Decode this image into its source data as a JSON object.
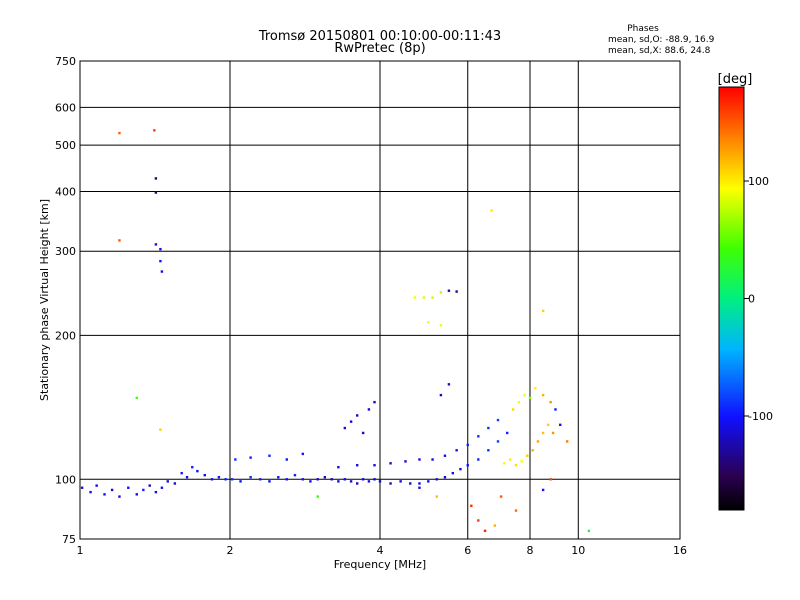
{
  "chart_data": {
    "type": "scatter",
    "title": "Tromsø 20150801 00:10:00-00:11:43",
    "subtitle": "RwPretec (8p)",
    "xlabel": "Frequency [MHz]",
    "ylabel": "Stationary phase Virtual Height [km]",
    "x_scale": "log2",
    "y_scale": "log",
    "xlim": [
      1,
      16
    ],
    "ylim": [
      75,
      750
    ],
    "x_ticks": [
      1,
      2,
      4,
      6,
      8,
      10,
      16
    ],
    "y_ticks": [
      75,
      100,
      200,
      300,
      400,
      500,
      600,
      750
    ],
    "grid": true,
    "stats": {
      "heading": "Phases",
      "line_o": "mean, sd,O: -88.9, 16.9",
      "line_x": "mean, sd,X:  88.6, 24.8"
    },
    "colorbar": {
      "label": "[deg]",
      "range": [
        -180,
        180
      ],
      "ticks": [
        100,
        0,
        -100
      ],
      "colormap": "rainbow"
    },
    "series": [
      {
        "points": [
          [
            1.01,
            96,
            -110
          ],
          [
            1.05,
            94,
            -105
          ],
          [
            1.08,
            97,
            -112
          ],
          [
            1.12,
            93,
            -100
          ],
          [
            1.16,
            95,
            -115
          ],
          [
            1.2,
            92,
            -108
          ],
          [
            1.25,
            96,
            -102
          ],
          [
            1.3,
            93,
            -110
          ],
          [
            1.34,
            95,
            -95
          ],
          [
            1.38,
            97,
            -120
          ],
          [
            1.42,
            94,
            -105
          ],
          [
            1.46,
            96,
            -100
          ],
          [
            1.5,
            99,
            -108
          ],
          [
            1.55,
            98,
            -112
          ],
          [
            1.6,
            103,
            -98
          ],
          [
            1.64,
            101,
            -105
          ],
          [
            1.68,
            106,
            -95
          ],
          [
            1.72,
            104,
            -100
          ],
          [
            1.78,
            102,
            -110
          ],
          [
            1.84,
            100,
            -105
          ],
          [
            1.9,
            101,
            -98
          ],
          [
            1.96,
            100,
            -95
          ],
          [
            2.02,
            100,
            -90
          ],
          [
            2.1,
            99,
            -100
          ],
          [
            2.2,
            101,
            -92
          ],
          [
            2.3,
            100,
            -96
          ],
          [
            2.4,
            99,
            -105
          ],
          [
            2.5,
            101,
            -98
          ],
          [
            2.6,
            100,
            -102
          ],
          [
            2.7,
            102,
            -95
          ],
          [
            2.8,
            100,
            -100
          ],
          [
            2.9,
            99,
            -108
          ],
          [
            3.0,
            100,
            -112
          ],
          [
            3.1,
            101,
            -118
          ],
          [
            3.2,
            100,
            -120
          ],
          [
            3.3,
            99,
            -115
          ],
          [
            3.4,
            100,
            -110
          ],
          [
            3.5,
            99,
            -118
          ],
          [
            3.6,
            98,
            -120
          ],
          [
            3.7,
            100,
            -112
          ],
          [
            3.8,
            99,
            -108
          ],
          [
            3.9,
            100,
            -115
          ],
          [
            4.0,
            99,
            -118
          ],
          [
            4.2,
            98,
            -120
          ],
          [
            4.4,
            99,
            -110
          ],
          [
            4.6,
            98,
            -115
          ],
          [
            4.8,
            98,
            -112
          ],
          [
            5.0,
            99,
            -108
          ],
          [
            5.2,
            100,
            -105
          ],
          [
            5.4,
            101,
            -110
          ],
          [
            5.6,
            103,
            -112
          ],
          [
            5.8,
            105,
            -108
          ],
          [
            6.0,
            107,
            -100
          ],
          [
            6.3,
            110,
            -95
          ],
          [
            6.6,
            115,
            -90
          ],
          [
            6.9,
            120,
            -85
          ],
          [
            2.05,
            110,
            -90
          ],
          [
            2.2,
            111,
            -95
          ],
          [
            2.4,
            112,
            -92
          ],
          [
            2.6,
            110,
            -98
          ],
          [
            2.8,
            113,
            -100
          ],
          [
            3.3,
            106,
            -105
          ],
          [
            3.6,
            107,
            -108
          ],
          [
            3.9,
            107,
            -110
          ],
          [
            4.2,
            108,
            -112
          ],
          [
            4.5,
            109,
            -115
          ],
          [
            4.8,
            110,
            -110
          ],
          [
            5.1,
            110,
            -105
          ],
          [
            5.4,
            112,
            -108
          ],
          [
            5.7,
            115,
            -100
          ],
          [
            6.0,
            118,
            -95
          ],
          [
            6.3,
            123,
            -90
          ],
          [
            6.6,
            128,
            -88
          ],
          [
            6.9,
            133,
            -85
          ],
          [
            3.4,
            128,
            -120
          ],
          [
            3.5,
            132,
            -118
          ],
          [
            3.6,
            136,
            -115
          ],
          [
            3.7,
            125,
            -122
          ],
          [
            3.8,
            140,
            -118
          ],
          [
            3.9,
            145,
            -120
          ],
          [
            5.3,
            150,
            -120
          ],
          [
            5.5,
            158,
            -115
          ],
          [
            1.42,
            398,
            -150
          ],
          [
            1.42,
            426,
            -145
          ],
          [
            1.42,
            310,
            -110
          ],
          [
            1.45,
            303,
            -105
          ],
          [
            1.45,
            286,
            -100
          ],
          [
            1.46,
            272,
            -110
          ],
          [
            4.7,
            240,
            90
          ],
          [
            4.9,
            240,
            85
          ],
          [
            5.1,
            240,
            80
          ],
          [
            5.3,
            246,
            75
          ],
          [
            5.5,
            248,
            -125
          ],
          [
            5.7,
            247,
            -130
          ],
          [
            5.0,
            213,
            95
          ],
          [
            5.3,
            210,
            90
          ],
          [
            6.7,
            365,
            100
          ],
          [
            1.2,
            530,
            150
          ],
          [
            1.41,
            537,
            160
          ],
          [
            1.2,
            316,
            150
          ],
          [
            1.3,
            148,
            40
          ],
          [
            1.45,
            127,
            110
          ],
          [
            3.0,
            92,
            40
          ],
          [
            4.8,
            96,
            -110
          ],
          [
            7.1,
            108,
            95
          ],
          [
            7.3,
            110,
            100
          ],
          [
            7.5,
            107,
            105
          ],
          [
            7.7,
            109,
            90
          ],
          [
            7.9,
            112,
            110
          ],
          [
            8.1,
            115,
            120
          ],
          [
            8.3,
            120,
            125
          ],
          [
            8.5,
            125,
            115
          ],
          [
            8.7,
            130,
            110
          ],
          [
            7.4,
            140,
            105
          ],
          [
            7.6,
            145,
            95
          ],
          [
            7.8,
            150,
            90
          ],
          [
            8.0,
            148,
            60
          ],
          [
            8.2,
            155,
            100
          ],
          [
            8.5,
            150,
            120
          ],
          [
            8.8,
            145,
            130
          ],
          [
            9.0,
            140,
            -95
          ],
          [
            6.1,
            88,
            165
          ],
          [
            6.3,
            82,
            160
          ],
          [
            6.5,
            78,
            170
          ],
          [
            7.0,
            92,
            150
          ],
          [
            7.5,
            86,
            145
          ],
          [
            8.5,
            95,
            -100
          ],
          [
            8.8,
            100,
            155
          ],
          [
            9.5,
            120,
            140
          ],
          [
            10.5,
            78,
            20
          ],
          [
            8.5,
            225,
            110
          ],
          [
            5.2,
            92,
            115
          ],
          [
            6.8,
            80,
            120
          ],
          [
            9.2,
            130,
            -105
          ],
          [
            8.9,
            125,
            130
          ],
          [
            7.2,
            125,
            -95
          ]
        ]
      }
    ]
  }
}
